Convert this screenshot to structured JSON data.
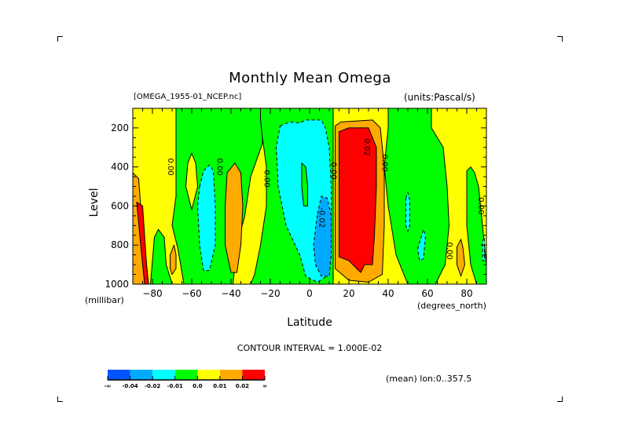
{
  "chart_data": {
    "type": "heatmap",
    "subtype": "filled-contour",
    "title": "Monthly Mean Omega",
    "file_label": "[OMEGA_1955-01_NCEP.nc]",
    "units_label": "(units:Pascal/s)",
    "xlabel": "Latitude",
    "xunits": "(degrees_north)",
    "ylabel": "Level",
    "yunits": "(millibar)",
    "xlim": [
      -90,
      90
    ],
    "ylim": [
      1000,
      100
    ],
    "x_ticks": [
      -80,
      -60,
      -40,
      -20,
      0,
      20,
      40,
      60,
      80
    ],
    "y_ticks": [
      200,
      400,
      600,
      800,
      1000
    ],
    "contour_interval_label": "CONTOUR INTERVAL = 1.000E-02",
    "footer_label": "(mean) lon:0..357.5",
    "colorbar": {
      "labels": [
        "-∞",
        "-0.04",
        "-0.02",
        "-0.01",
        "0.0",
        "0.01",
        "0.02",
        "∞"
      ],
      "colors": [
        "#0055ff",
        "#00aaff",
        "#00ffff",
        "#00ff00",
        "#ffff00",
        "#ffaa00",
        "#ff0000"
      ]
    },
    "contour_labels": [
      {
        "text": "0.00",
        "lat": -72,
        "lev": 400
      },
      {
        "text": "0.00",
        "lat": -47,
        "lev": 400
      },
      {
        "text": "0.00",
        "lat": -23,
        "lev": 460
      },
      {
        "text": "0.00",
        "lat": 11,
        "lev": 420
      },
      {
        "text": "-0.02",
        "lat": 5,
        "lev": 660
      },
      {
        "text": "0.02",
        "lat": 28,
        "lev": 300
      },
      {
        "text": "0.00",
        "lat": 37,
        "lev": 380
      },
      {
        "text": "0.00",
        "lat": 70,
        "lev": 830
      },
      {
        "text": "0.00",
        "lat": 86,
        "lev": 600
      }
    ],
    "regions": [
      {
        "level": 4,
        "desc": "yellow background",
        "poly": [
          [
            -90,
            100
          ],
          [
            90,
            100
          ],
          [
            90,
            1000
          ],
          [
            -90,
            1000
          ]
        ]
      },
      {
        "level": 3,
        "desc": "green SH high-lat band",
        "poly": [
          [
            -68,
            100
          ],
          [
            -25,
            100
          ],
          [
            -24,
            160
          ],
          [
            -24,
            280
          ],
          [
            -30,
            450
          ],
          [
            -33,
            650
          ],
          [
            -37,
            800
          ],
          [
            -39,
            1000
          ],
          [
            -64,
            1000
          ],
          [
            -67,
            820
          ],
          [
            -70,
            700
          ],
          [
            -68,
            550
          ],
          [
            -68,
            400
          ],
          [
            -68,
            100
          ]
        ]
      },
      {
        "level": 4,
        "desc": "yellow tongue",
        "poly": [
          [
            -62,
            380
          ],
          [
            -60,
            330
          ],
          [
            -58,
            380
          ],
          [
            -57,
            500
          ],
          [
            -60,
            620
          ],
          [
            -63,
            500
          ]
        ]
      },
      {
        "level": 2,
        "desc": "cyan SH",
        "poly": [
          [
            -56,
            500
          ],
          [
            -54,
            420
          ],
          [
            -51,
            390
          ],
          [
            -49,
            420
          ],
          [
            -48,
            600
          ],
          [
            -48,
            800
          ],
          [
            -51,
            930
          ],
          [
            -54,
            930
          ],
          [
            -56,
            800
          ],
          [
            -57,
            600
          ]
        ]
      },
      {
        "level": 5,
        "desc": "orange SH midlat",
        "poly": [
          [
            -42,
            430
          ],
          [
            -38,
            380
          ],
          [
            -35,
            430
          ],
          [
            -34,
            600
          ],
          [
            -35,
            800
          ],
          [
            -37,
            940
          ],
          [
            -40,
            940
          ],
          [
            -43,
            800
          ],
          [
            -43,
            600
          ]
        ]
      },
      {
        "level": 3,
        "desc": "green low SH",
        "poly": [
          [
            -81,
            1000
          ],
          [
            -79,
            760
          ],
          [
            -77,
            720
          ],
          [
            -74,
            760
          ],
          [
            -73,
            900
          ],
          [
            -70,
            1000
          ]
        ]
      },
      {
        "level": 5,
        "desc": "orange tiny SH",
        "poly": [
          [
            -71,
            850
          ],
          [
            -69,
            800
          ],
          [
            -68,
            850
          ],
          [
            -68,
            920
          ],
          [
            -70,
            950
          ],
          [
            -71,
            920
          ]
        ]
      },
      {
        "level": 5,
        "desc": "orange polar edge",
        "poly": [
          [
            -90,
            430
          ],
          [
            -87,
            460
          ],
          [
            -86,
            600
          ],
          [
            -84,
            800
          ],
          [
            -82,
            1000
          ],
          [
            -90,
            1000
          ]
        ]
      },
      {
        "level": 6,
        "desc": "red polar",
        "poly": [
          [
            -88,
            580
          ],
          [
            -85,
            600
          ],
          [
            -83,
            900
          ],
          [
            -82,
            1000
          ],
          [
            -84,
            1000
          ],
          [
            -86,
            800
          ]
        ]
      },
      {
        "level": 3,
        "desc": "green tropics",
        "poly": [
          [
            -25,
            100
          ],
          [
            12,
            100
          ],
          [
            12,
            1000
          ],
          [
            -30,
            1000
          ],
          [
            -28,
            950
          ],
          [
            -25,
            800
          ],
          [
            -22,
            600
          ],
          [
            -22,
            400
          ],
          [
            -24,
            250
          ],
          [
            -25,
            160
          ]
        ]
      },
      {
        "level": 2,
        "desc": "cyan tropics",
        "poly": [
          [
            -15,
            190
          ],
          [
            -10,
            170
          ],
          [
            -5,
            175
          ],
          [
            -2,
            160
          ],
          [
            6,
            160
          ],
          [
            8,
            200
          ],
          [
            10,
            300
          ],
          [
            11,
            500
          ],
          [
            11,
            800
          ],
          [
            10,
            950
          ],
          [
            4,
            990
          ],
          [
            -2,
            960
          ],
          [
            -5,
            850
          ],
          [
            -12,
            700
          ],
          [
            -16,
            500
          ],
          [
            -17,
            300
          ]
        ]
      },
      {
        "level": 3,
        "desc": "green island in cyan",
        "poly": [
          [
            -4,
            380
          ],
          [
            -2,
            400
          ],
          [
            -1,
            500
          ],
          [
            -1,
            600
          ],
          [
            -3,
            600
          ],
          [
            -4,
            500
          ]
        ]
      },
      {
        "level": 1,
        "desc": "blue deep",
        "poly": [
          [
            4,
            640
          ],
          [
            6,
            550
          ],
          [
            9,
            560
          ],
          [
            11,
            650
          ],
          [
            11,
            850
          ],
          [
            10,
            960
          ],
          [
            6,
            960
          ],
          [
            3,
            900
          ],
          [
            2,
            800
          ]
        ]
      },
      {
        "level": 5,
        "desc": "orange NH subtropics",
        "poly": [
          [
            13,
            190
          ],
          [
            16,
            170
          ],
          [
            32,
            160
          ],
          [
            36,
            200
          ],
          [
            38,
            400
          ],
          [
            38,
            700
          ],
          [
            37,
            950
          ],
          [
            30,
            990
          ],
          [
            20,
            980
          ],
          [
            13,
            920
          ],
          [
            13,
            500
          ]
        ]
      },
      {
        "level": 6,
        "desc": "red NH subtropics",
        "poly": [
          [
            15,
            220
          ],
          [
            20,
            200
          ],
          [
            30,
            200
          ],
          [
            34,
            300
          ],
          [
            34,
            500
          ],
          [
            33,
            750
          ],
          [
            32,
            900
          ],
          [
            28,
            900
          ],
          [
            26,
            940
          ],
          [
            20,
            880
          ],
          [
            15,
            860
          ],
          [
            15,
            500
          ]
        ]
      },
      {
        "level": 3,
        "desc": "green NH midlat",
        "poly": [
          [
            40,
            100
          ],
          [
            62,
            100
          ],
          [
            62,
            200
          ],
          [
            68,
            300
          ],
          [
            70,
            500
          ],
          [
            71,
            700
          ],
          [
            69,
            900
          ],
          [
            64,
            1000
          ],
          [
            50,
            1000
          ],
          [
            44,
            850
          ],
          [
            40,
            600
          ],
          [
            38,
            400
          ],
          [
            39,
            300
          ],
          [
            40,
            200
          ]
        ]
      },
      {
        "level": 3,
        "desc": "green NH high",
        "poly": [
          [
            80,
            420
          ],
          [
            82,
            400
          ],
          [
            84,
            430
          ],
          [
            86,
            500
          ],
          [
            88,
            700
          ],
          [
            90,
            900
          ],
          [
            90,
            1000
          ],
          [
            85,
            1000
          ],
          [
            82,
            900
          ],
          [
            80,
            700
          ]
        ]
      },
      {
        "level": 2,
        "desc": "cyan small 1",
        "poly": [
          [
            49,
            560
          ],
          [
            50,
            530
          ],
          [
            51,
            570
          ],
          [
            51,
            700
          ],
          [
            50,
            730
          ],
          [
            49,
            700
          ]
        ]
      },
      {
        "level": 2,
        "desc": "cyan small 2",
        "poly": [
          [
            55,
            820
          ],
          [
            58,
            720
          ],
          [
            59,
            750
          ],
          [
            58,
            870
          ],
          [
            56,
            880
          ]
        ]
      },
      {
        "level": 5,
        "desc": "orange NH high",
        "poly": [
          [
            75,
            810
          ],
          [
            77,
            770
          ],
          [
            78,
            810
          ],
          [
            79,
            900
          ],
          [
            77,
            960
          ],
          [
            75,
            900
          ]
        ]
      },
      {
        "level": 2,
        "desc": "cyan small 3",
        "poly": [
          [
            88,
            780
          ],
          [
            89,
            760
          ],
          [
            89,
            880
          ],
          [
            88,
            880
          ]
        ]
      }
    ]
  }
}
